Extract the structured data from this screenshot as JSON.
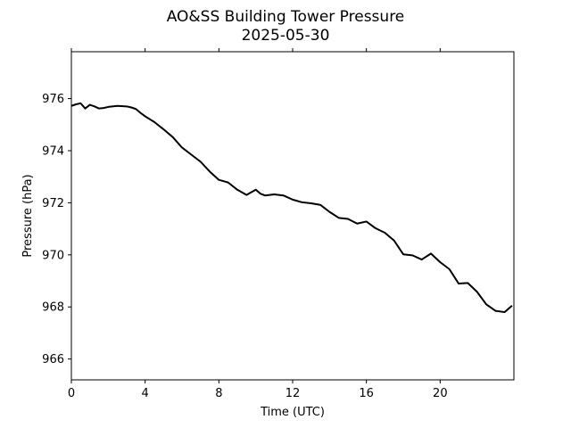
{
  "chart_data": {
    "type": "line",
    "title": "AO&SS Building Tower Pressure",
    "subtitle": "2025-05-30",
    "xlabel": "Time (UTC)",
    "ylabel": "Pressure (hPa)",
    "xlim": [
      0,
      24
    ],
    "ylim": [
      965.2,
      977.8
    ],
    "x_ticks": [
      0,
      4,
      8,
      12,
      16,
      20
    ],
    "x_tick_labels": [
      "0",
      "4",
      "8",
      "12",
      "16",
      "20"
    ],
    "y_ticks": [
      966,
      968,
      970,
      972,
      974,
      976
    ],
    "y_tick_labels": [
      "966",
      "968",
      "970",
      "972",
      "974",
      "976"
    ],
    "grid": false,
    "legend": "none",
    "series": [
      {
        "color": "#000000",
        "x": [
          0,
          0.25,
          0.5,
          0.75,
          1,
          1.25,
          1.5,
          1.75,
          2,
          2.5,
          3,
          3.25,
          3.5,
          3.75,
          4,
          4.5,
          5,
          5.5,
          6,
          6.5,
          7,
          7.5,
          8,
          8.5,
          9,
          9.5,
          10,
          10.25,
          10.5,
          11,
          11.5,
          12,
          12.5,
          13,
          13.5,
          14,
          14.5,
          15,
          15.5,
          16,
          16.5,
          17,
          17.5,
          18,
          18.5,
          19,
          19.5,
          20,
          20.5,
          21,
          21.5,
          22,
          22.5,
          23,
          23.5,
          23.9
        ],
        "values": [
          975.72,
          975.78,
          975.82,
          975.62,
          975.76,
          975.7,
          975.62,
          975.64,
          975.68,
          975.72,
          975.7,
          975.66,
          975.6,
          975.45,
          975.32,
          975.1,
          974.82,
          974.52,
          974.12,
          973.85,
          973.58,
          973.2,
          972.88,
          972.78,
          972.5,
          972.3,
          972.5,
          972.35,
          972.28,
          972.32,
          972.28,
          972.12,
          972.02,
          971.98,
          971.92,
          971.65,
          971.42,
          971.38,
          971.2,
          971.28,
          971.02,
          970.85,
          970.55,
          970.02,
          969.98,
          969.82,
          970.05,
          969.72,
          969.45,
          968.9,
          968.92,
          968.58,
          968.1,
          967.85,
          967.8,
          968.05
        ]
      }
    ]
  }
}
